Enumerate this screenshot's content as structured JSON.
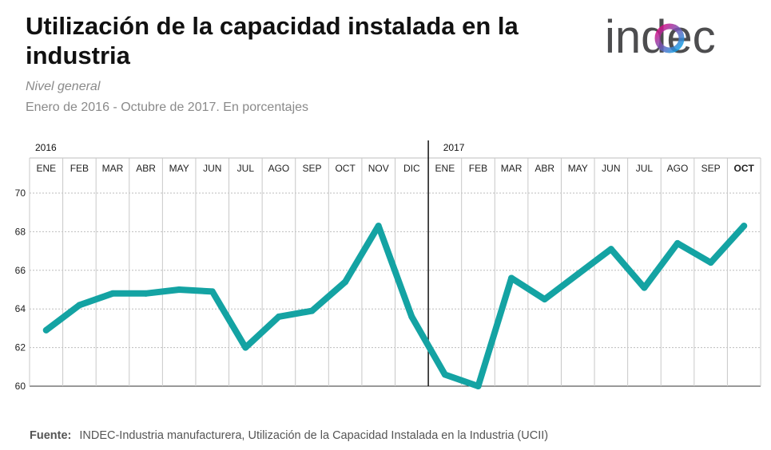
{
  "header": {
    "title": "Utilización de la capacidad instalada en la industria",
    "subtitle": "Nivel general",
    "period": "Enero de 2016 - Octubre de 2017. En porcentajes"
  },
  "logo": {
    "text": "indec",
    "colors": [
      "#e6007e",
      "#00aeef",
      "#4d4d4f"
    ]
  },
  "footer": {
    "source_label": "Fuente:",
    "source_text": "INDEC-Industria manufacturera, Utilización de la Capacidad Instalada en la Industria (UCII)"
  },
  "chart_data": {
    "type": "line",
    "years": [
      {
        "label": "2016",
        "start_index": 0
      },
      {
        "label": "2017",
        "start_index": 12
      }
    ],
    "categories": [
      "ENE",
      "FEB",
      "MAR",
      "ABR",
      "MAY",
      "JUN",
      "JUL",
      "AGO",
      "SEP",
      "OCT",
      "NOV",
      "DIC",
      "ENE",
      "FEB",
      "MAR",
      "ABR",
      "MAY",
      "JUN",
      "JUL",
      "AGO",
      "SEP",
      "OCT"
    ],
    "highlight_category_index": 21,
    "series": [
      {
        "name": "Nivel general",
        "values": [
          62.9,
          64.2,
          64.8,
          64.8,
          65.0,
          64.9,
          62.0,
          63.6,
          63.9,
          65.4,
          68.3,
          63.6,
          60.6,
          60.0,
          65.6,
          64.5,
          65.8,
          67.1,
          65.1,
          67.4,
          66.4,
          68.3
        ]
      }
    ],
    "yticks": [
      60,
      62,
      64,
      66,
      68,
      70
    ],
    "ylim": [
      60,
      70
    ],
    "xlabel": "",
    "ylabel": "",
    "line_color": "#14a3a3",
    "grid": true
  }
}
